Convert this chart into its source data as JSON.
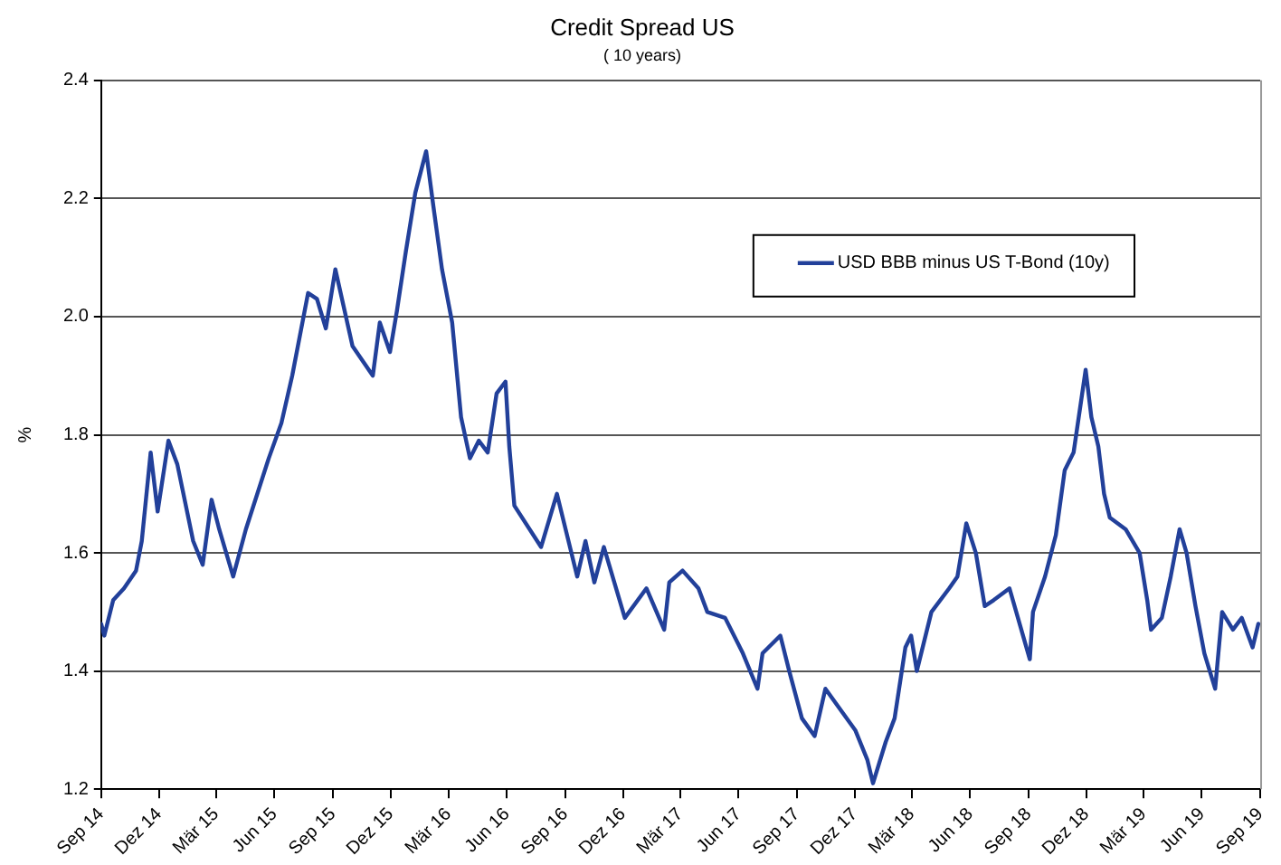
{
  "chart_data": {
    "type": "line",
    "title": "Credit Spread US",
    "subtitle": "( 10 years)",
    "ylabel": "%",
    "x": [
      "2014-09-01",
      "2014-09-06",
      "2014-09-20",
      "2014-10-07",
      "2014-10-26",
      "2014-11-04",
      "2014-11-18",
      "2014-11-29",
      "2014-12-16",
      "2014-12-30",
      "2015-01-24",
      "2015-02-08",
      "2015-02-22",
      "2015-03-06",
      "2015-03-28",
      "2015-04-17",
      "2015-05-23",
      "2015-06-12",
      "2015-06-29",
      "2015-07-24",
      "2015-08-07",
      "2015-08-21",
      "2015-09-05",
      "2015-10-02",
      "2015-11-03",
      "2015-11-14",
      "2015-11-30",
      "2015-12-11",
      "2015-12-25",
      "2016-01-09",
      "2016-01-26",
      "2016-02-06",
      "2016-02-20",
      "2016-03-07",
      "2016-03-21",
      "2016-04-04",
      "2016-04-18",
      "2016-05-02",
      "2016-05-16",
      "2016-05-30",
      "2016-06-05",
      "2016-06-13",
      "2016-07-25",
      "2016-08-19",
      "2016-09-20",
      "2016-10-03",
      "2016-10-17",
      "2016-11-01",
      "2016-12-04",
      "2017-01-07",
      "2017-02-04",
      "2017-02-12",
      "2017-03-05",
      "2017-03-30",
      "2017-04-13",
      "2017-05-11",
      "2017-06-08",
      "2017-07-01",
      "2017-07-09",
      "2017-08-06",
      "2017-08-20",
      "2017-09-09",
      "2017-09-29",
      "2017-10-16",
      "2017-11-05",
      "2017-12-02",
      "2017-12-21",
      "2017-12-30",
      "2018-01-19",
      "2018-02-02",
      "2018-02-19",
      "2018-02-28",
      "2018-03-09",
      "2018-04-01",
      "2018-04-29",
      "2018-05-12",
      "2018-05-26",
      "2018-06-10",
      "2018-06-24",
      "2018-07-08",
      "2018-08-02",
      "2018-08-10",
      "2018-09-03",
      "2018-09-08",
      "2018-09-27",
      "2018-10-14",
      "2018-10-28",
      "2018-11-11",
      "2018-11-30",
      "2018-12-09",
      "2018-12-20",
      "2018-12-29",
      "2019-01-07",
      "2019-02-01",
      "2019-02-23",
      "2019-03-07",
      "2019-03-13",
      "2019-03-30",
      "2019-04-13",
      "2019-04-27",
      "2019-05-08",
      "2019-05-22",
      "2019-06-05",
      "2019-06-22",
      "2019-07-03",
      "2019-07-20",
      "2019-08-03",
      "2019-08-20",
      "2019-08-29"
    ],
    "series": [
      {
        "name": "USD BBB minus US T-Bond (10y)",
        "color": "#22409a",
        "values": [
          1.48,
          1.46,
          1.52,
          1.54,
          1.57,
          1.62,
          1.77,
          1.67,
          1.79,
          1.75,
          1.62,
          1.58,
          1.69,
          1.64,
          1.56,
          1.64,
          1.76,
          1.82,
          1.9,
          2.04,
          2.03,
          1.98,
          2.08,
          1.95,
          1.9,
          1.99,
          1.94,
          2.01,
          2.11,
          2.21,
          2.28,
          2.19,
          2.08,
          1.99,
          1.83,
          1.76,
          1.79,
          1.77,
          1.87,
          1.89,
          1.78,
          1.68,
          1.61,
          1.7,
          1.56,
          1.62,
          1.55,
          1.61,
          1.49,
          1.54,
          1.47,
          1.55,
          1.57,
          1.54,
          1.5,
          1.49,
          1.43,
          1.37,
          1.43,
          1.46,
          1.4,
          1.32,
          1.29,
          1.37,
          1.34,
          1.3,
          1.25,
          1.21,
          1.28,
          1.32,
          1.44,
          1.46,
          1.4,
          1.5,
          1.54,
          1.56,
          1.65,
          1.6,
          1.51,
          1.52,
          1.54,
          1.51,
          1.42,
          1.5,
          1.56,
          1.63,
          1.74,
          1.77,
          1.91,
          1.83,
          1.78,
          1.7,
          1.66,
          1.64,
          1.6,
          1.52,
          1.47,
          1.49,
          1.56,
          1.64,
          1.6,
          1.51,
          1.43,
          1.37,
          1.5,
          1.47,
          1.49,
          1.44,
          1.48
        ]
      }
    ],
    "xlim": [
      "2014-09",
      "2019-09"
    ],
    "xticks": [
      {
        "value": "2014-09",
        "label": "Sep 14"
      },
      {
        "value": "2014-12",
        "label": "Dez 14"
      },
      {
        "value": "2015-03",
        "label": "Mär 15"
      },
      {
        "value": "2015-06",
        "label": "Jun 15"
      },
      {
        "value": "2015-09",
        "label": "Sep 15"
      },
      {
        "value": "2015-12",
        "label": "Dez 15"
      },
      {
        "value": "2016-03",
        "label": "Mär 16"
      },
      {
        "value": "2016-06",
        "label": "Jun 16"
      },
      {
        "value": "2016-09",
        "label": "Sep 16"
      },
      {
        "value": "2016-12",
        "label": "Dez 16"
      },
      {
        "value": "2017-03",
        "label": "Mär 17"
      },
      {
        "value": "2017-06",
        "label": "Jun 17"
      },
      {
        "value": "2017-09",
        "label": "Sep 17"
      },
      {
        "value": "2017-12",
        "label": "Dez 17"
      },
      {
        "value": "2018-03",
        "label": "Mär 18"
      },
      {
        "value": "2018-06",
        "label": "Jun 18"
      },
      {
        "value": "2018-09",
        "label": "Sep 18"
      },
      {
        "value": "2018-12",
        "label": "Dez 18"
      },
      {
        "value": "2019-03",
        "label": "Mär 19"
      },
      {
        "value": "2019-06",
        "label": "Jun 19"
      },
      {
        "value": "2019-09",
        "label": "Sep 19"
      }
    ],
    "ylim": [
      1.2,
      2.4
    ],
    "yticks": [
      {
        "value": 1.2,
        "label": "1.2"
      },
      {
        "value": 1.4,
        "label": "1.4"
      },
      {
        "value": 1.6,
        "label": "1.6"
      },
      {
        "value": 1.8,
        "label": "1.8"
      },
      {
        "value": 2.0,
        "label": "2.0"
      },
      {
        "value": 2.2,
        "label": "2.2"
      },
      {
        "value": 2.4,
        "label": "2.4"
      }
    ],
    "grid": "y",
    "legend": "top right",
    "marker": "none",
    "line_style": "solid"
  }
}
